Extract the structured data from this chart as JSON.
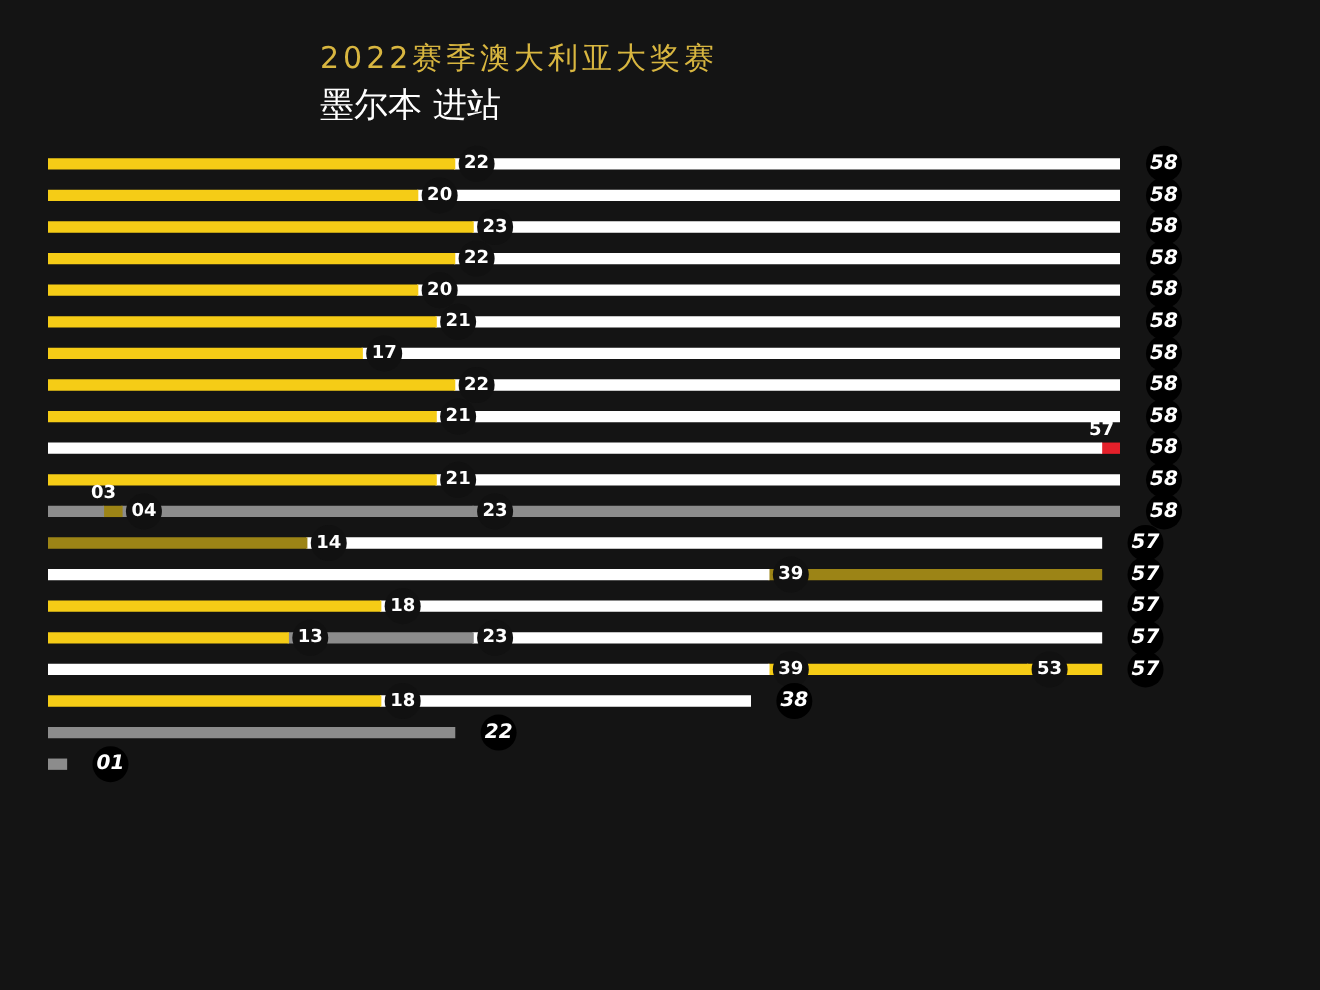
{
  "chart_data": {
    "type": "bar",
    "orientation": "horizontal",
    "stacked": true,
    "title": "2022赛季澳大利亚大奖赛",
    "subtitle": "墨尔本 进站",
    "categories": [
      null,
      null,
      null,
      null,
      null,
      null,
      null,
      null,
      null,
      null,
      null,
      null,
      null,
      null,
      null,
      null,
      null,
      null,
      null,
      null
    ],
    "xlim": [
      0,
      58
    ],
    "tick_labels": false,
    "series": [
      {
        "values": [
          22,
          20,
          23,
          22,
          20,
          21,
          17,
          22,
          21,
          57,
          21,
          3,
          14,
          39,
          18,
          13,
          39,
          18,
          22,
          1
        ],
        "colors": [
          "#f5cc16",
          "#f5cc16",
          "#f5cc16",
          "#f5cc16",
          "#f5cc16",
          "#f5cc16",
          "#f5cc16",
          "#f5cc16",
          "#f5cc16",
          "#ffffff",
          "#f5cc16",
          "#8c8c8c",
          "#9c8416",
          "#ffffff",
          "#f5cc16",
          "#f5cc16",
          "#ffffff",
          "#f5cc16",
          "#8c8c8c",
          "#8c8c8c"
        ],
        "value_labels": [
          "22",
          "20",
          "23",
          "22",
          "20",
          "21",
          "17",
          "22",
          "21",
          "57",
          "21",
          "03",
          "14",
          "39",
          "18",
          "13",
          "39",
          "18",
          null,
          null
        ]
      },
      {
        "values": [
          36,
          38,
          35,
          36,
          38,
          37,
          41,
          36,
          37,
          1,
          37,
          1,
          43,
          18,
          39,
          10,
          14,
          20,
          null,
          null
        ],
        "colors": [
          "#ffffff",
          "#ffffff",
          "#ffffff",
          "#ffffff",
          "#ffffff",
          "#ffffff",
          "#ffffff",
          "#ffffff",
          "#ffffff",
          "#e4202a",
          "#ffffff",
          "#9c8416",
          "#ffffff",
          "#9c8416",
          "#ffffff",
          "#8c8c8c",
          "#f5cc16",
          "#ffffff",
          null,
          null
        ]
      },
      {
        "values": [
          null,
          null,
          null,
          null,
          null,
          null,
          null,
          null,
          null,
          null,
          null,
          19,
          null,
          null,
          null,
          34,
          4,
          null,
          null,
          null
        ],
        "colors": [
          null,
          null,
          null,
          null,
          null,
          null,
          null,
          null,
          null,
          null,
          null,
          "#8c8c8c",
          null,
          null,
          null,
          "#ffffff",
          "#f5cc16",
          null,
          null,
          null
        ]
      },
      {
        "values": [
          null,
          null,
          null,
          null,
          null,
          null,
          null,
          null,
          null,
          null,
          null,
          35,
          null,
          null,
          null,
          null,
          null,
          null,
          null,
          null
        ],
        "colors": [
          null,
          null,
          null,
          null,
          null,
          null,
          null,
          null,
          null,
          null,
          null,
          "#8c8c8c",
          null,
          null,
          null,
          null,
          null,
          null,
          null,
          null
        ]
      }
    ],
    "annotations": [
      {
        "text": "04",
        "x": 4
      },
      {
        "text": "23",
        "x": 23
      },
      {
        "text": "23",
        "x": 23
      },
      {
        "text": "53",
        "x": 53
      }
    ],
    "totals": [
      "58",
      "58",
      "58",
      "58",
      "58",
      "58",
      "58",
      "58",
      "58",
      "58",
      "58",
      "58",
      "57",
      "57",
      "57",
      "57",
      "57",
      "38",
      "22",
      "01"
    ]
  }
}
